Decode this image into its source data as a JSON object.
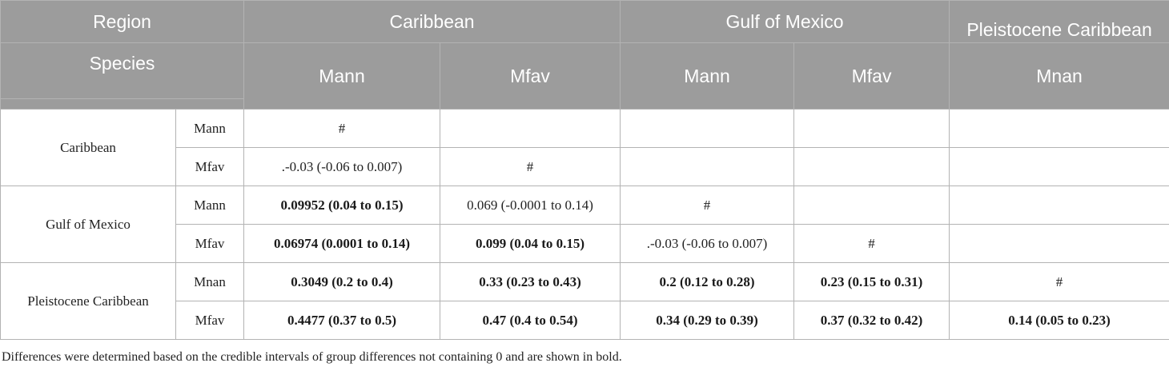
{
  "header": {
    "region_label": "Region",
    "species_label": "Species",
    "groups": [
      "Caribbean",
      "Gulf of Mexico",
      "Pleistocene Caribbean"
    ],
    "species": [
      "Mann",
      "Mfav",
      "Mann",
      "Mfav",
      "Mnan"
    ]
  },
  "rows": [
    {
      "region": "Caribbean",
      "species": "Mann",
      "cells": [
        "#",
        "",
        "",
        "",
        ""
      ]
    },
    {
      "region": "",
      "species": "Mfav",
      "cells": [
        ".-0.03 (-0.06 to 0.007)",
        "#",
        "",
        "",
        ""
      ]
    },
    {
      "region": "Gulf of Mexico",
      "species": "Mann",
      "cells": [
        "0.09952 (0.04 to 0.15)",
        "0.069 (-0.0001 to 0.14)",
        "#",
        "",
        ""
      ]
    },
    {
      "region": "",
      "species": "Mfav",
      "cells": [
        "0.06974 (0.0001 to 0.14)",
        "0.099 (0.04 to 0.15)",
        ".-0.03 (-0.06 to 0.007)",
        "#",
        ""
      ]
    },
    {
      "region": "Pleistocene Caribbean",
      "species": "Mnan",
      "cells": [
        "0.3049 (0.2 to 0.4)",
        "0.33 (0.23 to 0.43)",
        "0.2 (0.12 to 0.28)",
        "0.23 (0.15 to 0.31)",
        "#"
      ]
    },
    {
      "region": "",
      "species": "Mfav",
      "cells": [
        "0.4477 (0.37 to 0.5)",
        "0.47 (0.4 to 0.54)",
        "0.34 (0.29 to 0.39)",
        "0.37 (0.32 to 0.42)",
        "0.14 (0.05 to 0.23)"
      ]
    }
  ],
  "footnote": "Differences were determined based on the credible intervals of group differences not containing 0 and are shown in bold."
}
